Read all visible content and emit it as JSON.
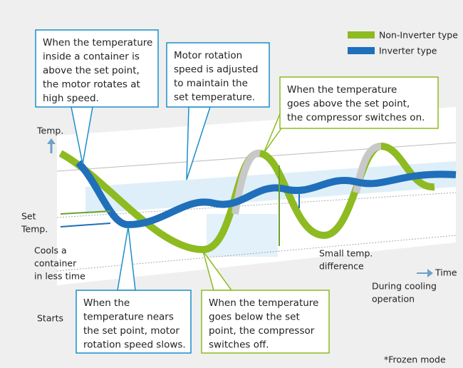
{
  "legend": {
    "items": [
      "Non-Inverter type",
      "Inverter type"
    ]
  },
  "callouts": [
    {
      "lines": [
        "When the temperature",
        "inside a container is",
        "above the set point,",
        "the motor rotates at",
        "high speed."
      ]
    },
    {
      "lines": [
        "Motor rotation",
        "speed is adjusted",
        "to maintain the",
        "set temperature."
      ]
    },
    {
      "lines": [
        "When the temperature",
        "goes above the set point,",
        "the compressor switches on."
      ]
    },
    {
      "lines": [
        "When the",
        "temperature nears",
        "the set point, motor",
        "rotation speed slows."
      ]
    },
    {
      "lines": [
        "When the temperature",
        "goes below the set",
        "point, the compressor",
        "switches off."
      ]
    }
  ],
  "labels": {
    "temp": "Temp.",
    "set_temp": [
      "Set",
      "Temp."
    ],
    "cools": [
      "Cools a",
      "container",
      "in less time"
    ],
    "small_diff": [
      "Small temp.",
      "difference"
    ],
    "time": "Time",
    "during": [
      "During cooling",
      "operation"
    ],
    "starts": "Starts",
    "note": "*Frozen mode"
  }
}
